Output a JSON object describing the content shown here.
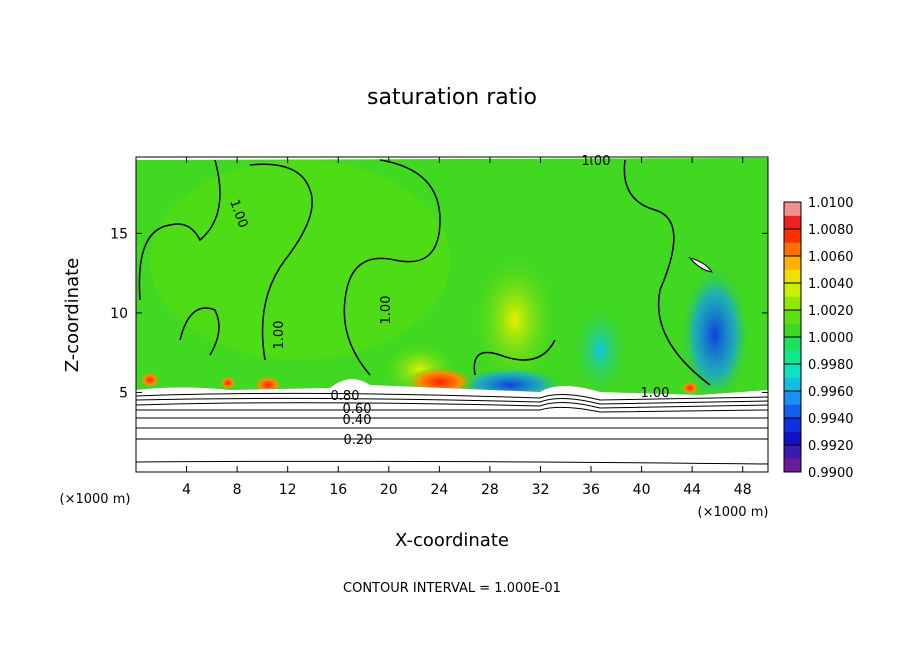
{
  "chart_data": {
    "type": "contour",
    "title": "saturation ratio",
    "x_label": "X-coordinate",
    "y_label": "Z-coordinate",
    "x_unit": "(×1000 m)",
    "y_unit": "(×1000 m)",
    "footer": "CONTOUR INTERVAL = 1.000E-01",
    "xlim": [
      0,
      50
    ],
    "xticks": [
      4,
      8,
      12,
      16,
      20,
      24,
      28,
      32,
      36,
      40,
      44,
      48
    ],
    "ylim": [
      0,
      19.8
    ],
    "yticks": [
      5,
      10,
      15
    ],
    "contour_labels": [
      "1.00",
      "1.00",
      "1.00",
      "1.00",
      "1.00",
      "0.80",
      "0.60",
      "0.40",
      "0.20"
    ],
    "colorbar": {
      "clim": [
        0.99,
        1.01
      ],
      "colors": [
        "#6a1a9a",
        "#3a1ab0",
        "#1010c8",
        "#1030e0",
        "#1060f0",
        "#1a90f0",
        "#10c0e0",
        "#10e0c0",
        "#10e890",
        "#20e060",
        "#40d820",
        "#60e010",
        "#90e800",
        "#c8f000",
        "#f0e000",
        "#ffb000",
        "#ff7000",
        "#ff3000",
        "#f02020",
        "#f09090"
      ],
      "ticks": [
        {
          "value": 0.99,
          "label": "0.9900"
        },
        {
          "value": 0.992,
          "label": "0.9920"
        },
        {
          "value": 0.994,
          "label": "0.9940"
        },
        {
          "value": 0.996,
          "label": "0.9960"
        },
        {
          "value": 0.998,
          "label": "0.9980"
        },
        {
          "value": 1.0,
          "label": "1.0000"
        },
        {
          "value": 1.002,
          "label": "1.0020"
        },
        {
          "value": 1.004,
          "label": "1.0040"
        },
        {
          "value": 1.006,
          "label": "1.0060"
        },
        {
          "value": 1.008,
          "label": "1.0080"
        },
        {
          "value": 1.01,
          "label": "1.0100"
        }
      ]
    }
  }
}
